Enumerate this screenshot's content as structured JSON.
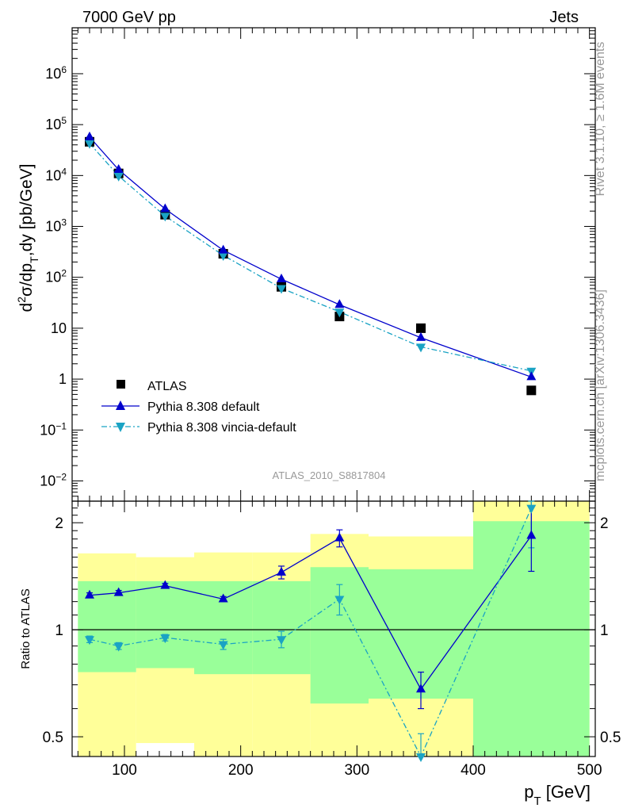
{
  "header": {
    "left": "7000 GeV pp",
    "right": "Jets"
  },
  "side_labels": {
    "rivet": "Rivet 3.1.10, ≥ 1.6M events",
    "mcplots": "mcplots.cern.ch [arXiv:1306.3436]"
  },
  "analysis_id": "ATLAS_2010_S8817804",
  "colors": {
    "atlas": "#000000",
    "pythia_default": "#0000cc",
    "pythia_vincia": "#1aa3c4",
    "band_inner": "#99ff99",
    "band_outer": "#ffff99"
  },
  "chart_data": [
    {
      "type": "line",
      "panel": "main",
      "xlabel": "",
      "ylabel": "d²σ/dp_T,dy [pb/GeV]",
      "ylabel_parts": {
        "a": "d",
        "b": "2",
        "c": "σ/dp",
        "d": "T",
        "e": ",dy [pb/GeV]"
      },
      "yscale": "log",
      "xlim": [
        55,
        505
      ],
      "ylim": [
        0.004,
        8000000
      ],
      "y_ticks": [
        {
          "value": 1000000,
          "base": "10",
          "exp": "6"
        },
        {
          "value": 100000,
          "base": "10",
          "exp": "5"
        },
        {
          "value": 10000,
          "base": "10",
          "exp": "4"
        },
        {
          "value": 1000,
          "base": "10",
          "exp": "3"
        },
        {
          "value": 100,
          "base": "10",
          "exp": "2"
        },
        {
          "value": 10,
          "base": "10",
          "exp": ""
        },
        {
          "value": 1,
          "base": "1",
          "exp": ""
        },
        {
          "value": 0.1,
          "base": "10",
          "exp": "−1"
        },
        {
          "value": 0.01,
          "base": "10",
          "exp": "−2"
        }
      ],
      "legend_position": "bottom-left",
      "series": [
        {
          "name": "ATLAS",
          "marker": "square",
          "x": [
            70,
            95,
            135,
            185,
            235,
            285,
            355,
            450
          ],
          "y": [
            46000,
            11000,
            1700,
            290,
            65,
            17,
            10,
            0.6
          ]
        },
        {
          "name": "Pythia 8.308 default",
          "marker": "triangle-up",
          "line": "solid",
          "x": [
            70,
            95,
            135,
            185,
            235,
            285,
            355,
            450
          ],
          "y": [
            57000,
            13000,
            2200,
            340,
            92,
            29,
            6.5,
            1.1
          ]
        },
        {
          "name": "Pythia 8.308 vincia-default",
          "marker": "triangle-down",
          "line": "dashdot",
          "x": [
            70,
            95,
            135,
            185,
            235,
            285,
            355,
            450
          ],
          "y": [
            43000,
            9800,
            1600,
            270,
            61,
            21,
            4.3,
            1.45
          ]
        }
      ]
    },
    {
      "type": "line",
      "panel": "ratio",
      "xlabel": "p_T [GeV]",
      "xlabel_parts": {
        "a": "p",
        "b": "T",
        "c": " [GeV]"
      },
      "ylabel": "Ratio to ATLAS",
      "yscale": "log",
      "xlim": [
        55,
        505
      ],
      "ylim": [
        0.44,
        2.3
      ],
      "x_ticks": [
        100,
        200,
        300,
        400,
        500
      ],
      "y_ticks": [
        0.5,
        1,
        2
      ],
      "bands": [
        {
          "x": [
            60,
            110
          ],
          "inner": [
            0.76,
            1.37
          ],
          "outer": [
            0.37,
            1.64
          ]
        },
        {
          "x": [
            110,
            160
          ],
          "inner": [
            0.78,
            1.37
          ],
          "outer": [
            0.48,
            1.6
          ]
        },
        {
          "x": [
            160,
            210
          ],
          "inner": [
            0.75,
            1.37
          ],
          "outer": [
            0.37,
            1.65
          ]
        },
        {
          "x": [
            210,
            260
          ],
          "inner": [
            0.75,
            1.37
          ],
          "outer": [
            0.37,
            1.65
          ]
        },
        {
          "x": [
            260,
            310
          ],
          "inner": [
            0.62,
            1.5
          ],
          "outer": [
            0.37,
            1.86
          ]
        },
        {
          "x": [
            310,
            400
          ],
          "inner": [
            0.64,
            1.48
          ],
          "outer": [
            0.37,
            1.83
          ]
        },
        {
          "x": [
            400,
            500
          ],
          "inner": [
            0.37,
            2.02
          ],
          "outer": [
            0.37,
            2.4
          ]
        }
      ],
      "series": [
        {
          "name": "Pythia 8.308 default",
          "marker": "triangle-up",
          "line": "solid",
          "x": [
            70,
            95,
            135,
            185,
            235,
            285,
            355,
            450
          ],
          "y": [
            1.25,
            1.27,
            1.33,
            1.22,
            1.45,
            1.81,
            0.68,
            1.84
          ],
          "err": [
            0.02,
            0.02,
            0.02,
            0.02,
            0.06,
            0.1,
            0.08,
            0.38
          ]
        },
        {
          "name": "Pythia 8.308 vincia-default",
          "marker": "triangle-down",
          "line": "dashdot",
          "x": [
            70,
            95,
            135,
            185,
            235,
            285,
            355,
            450
          ],
          "y": [
            0.94,
            0.9,
            0.95,
            0.91,
            0.94,
            1.22,
            0.41,
            2.2
          ],
          "err": [
            0.02,
            0.02,
            0.02,
            0.03,
            0.05,
            0.12,
            0.1,
            0.5
          ]
        }
      ]
    }
  ]
}
